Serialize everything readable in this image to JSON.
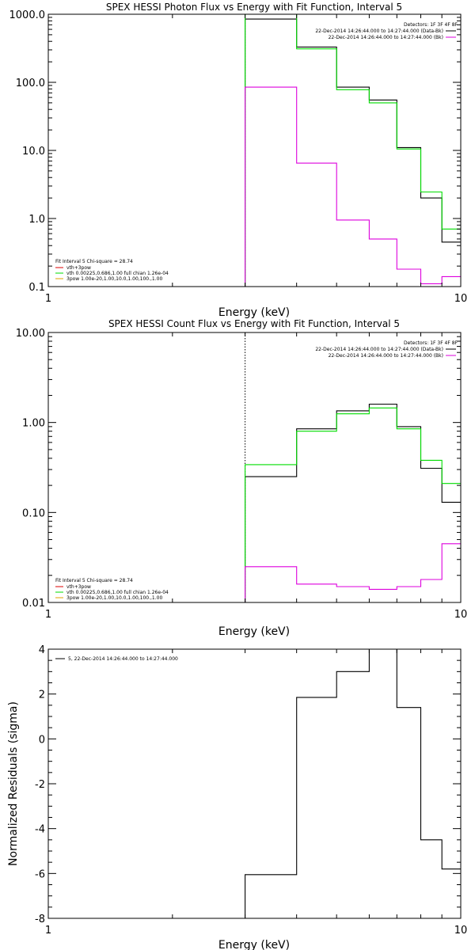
{
  "chart_data": [
    {
      "type": "line",
      "title": "SPEX HESSI Photon Flux vs Energy with Fit Function, Interval 5",
      "xlabel": "Energy (keV)",
      "ylabel": "",
      "xscale": "log",
      "yscale": "log",
      "xlim": [
        1,
        10
      ],
      "ylim": [
        0.1,
        1000
      ],
      "xticks": [
        {
          "v": 1,
          "label": "1"
        },
        {
          "v": 10,
          "label": "10"
        }
      ],
      "yticks": [
        {
          "v": 1000,
          "label": "1000.0"
        },
        {
          "v": 100,
          "label": "100.0"
        },
        {
          "v": 10,
          "label": "10.0"
        },
        {
          "v": 1,
          "label": "1.0"
        },
        {
          "v": 0.1,
          "label": "0.1"
        }
      ],
      "vline": 3.0,
      "vline_color": "#00c000",
      "bin_edges": [
        3.0,
        4.0,
        5.0,
        6.0,
        7.0,
        8.0,
        9.0,
        10.0
      ],
      "series": [
        {
          "color": "#000000",
          "values": [
            850,
            330,
            85,
            55,
            11,
            2.0,
            0.45
          ]
        },
        {
          "color": "#00dd00",
          "values": [
            1000,
            310,
            78,
            50,
            10.5,
            2.45,
            0.7
          ]
        },
        {
          "color": "#dd00dd",
          "values": [
            85,
            6.5,
            0.95,
            0.5,
            0.18,
            0.11,
            0.14
          ]
        }
      ],
      "header_right": {
        "detectors": "Detectors: 1F 3F 4F 8F",
        "lines": [
          {
            "text": "22-Dec-2014 14:26:44.000 to 14:27:44.000 (Data-Bk)",
            "color": "#000000"
          },
          {
            "text": "22-Dec-2014 14:26:44.000 to 14:27:44.000 (Bk)",
            "color": "#dd00dd"
          }
        ]
      },
      "legend_box": {
        "header": "Fit Interval 5   Chi-square = 28.74",
        "lines": [
          {
            "text": "vth+3pow",
            "color": "#dd0000"
          },
          {
            "text": "vth 0.00225,0.686,1.00  full chian 1.26e-04",
            "color": "#00dd00"
          },
          {
            "text": "3pow 1.00e-20,1.00,10.0,1.00,100.,1.00",
            "color": "#e0a000"
          }
        ]
      }
    },
    {
      "type": "line",
      "title": "SPEX HESSI Count Flux vs Energy with Fit Function, Interval 5",
      "xlabel": "Energy (keV)",
      "ylabel": "",
      "xscale": "log",
      "yscale": "log",
      "xlim": [
        1,
        10
      ],
      "ylim": [
        0.01,
        10
      ],
      "xticks": [
        {
          "v": 1,
          "label": "1"
        },
        {
          "v": 10,
          "label": "10"
        }
      ],
      "yticks": [
        {
          "v": 10,
          "label": "10.00"
        },
        {
          "v": 1,
          "label": "1.00"
        },
        {
          "v": 0.1,
          "label": "0.10"
        },
        {
          "v": 0.01,
          "label": "0.01"
        }
      ],
      "vline": 3.0,
      "vline_color": "#000000",
      "bin_edges": [
        3.0,
        4.0,
        5.0,
        6.0,
        7.0,
        8.0,
        9.0,
        10.0
      ],
      "series": [
        {
          "color": "#000000",
          "values": [
            0.25,
            0.85,
            1.35,
            1.6,
            0.9,
            0.31,
            0.13
          ]
        },
        {
          "color": "#00dd00",
          "values": [
            0.34,
            0.8,
            1.25,
            1.45,
            0.85,
            0.38,
            0.21
          ]
        },
        {
          "color": "#dd00dd",
          "values": [
            0.025,
            0.016,
            0.015,
            0.014,
            0.015,
            0.018,
            0.045
          ]
        }
      ],
      "header_right": {
        "detectors": "Detectors: 1F 3F 4F 8F",
        "lines": [
          {
            "text": "22-Dec-2014 14:26:44.000 to 14:27:44.000 (Data-Bk)",
            "color": "#000000"
          },
          {
            "text": "22-Dec-2014 14:26:44.000 to 14:27:44.000 (Bk)",
            "color": "#dd00dd"
          }
        ]
      },
      "legend_box": {
        "header": "Fit Interval 5   Chi-square = 28.74",
        "lines": [
          {
            "text": "vth+3pow",
            "color": "#dd0000"
          },
          {
            "text": "vth 0.00225,0.686,1.00  full chian 1.26e-04",
            "color": "#00dd00"
          },
          {
            "text": "3pow 1.00e-20,1.00,10.0,1.00,100.,1.00",
            "color": "#e0a000"
          }
        ]
      }
    },
    {
      "type": "line",
      "title": "",
      "xlabel": "Energy (keV)",
      "ylabel": "Normalized Residuals (sigma)",
      "xscale": "log",
      "yscale": "linear",
      "xlim": [
        1,
        10
      ],
      "ylim": [
        -8,
        4
      ],
      "xticks": [
        {
          "v": 1,
          "label": "1"
        },
        {
          "v": 10,
          "label": "10"
        }
      ],
      "yticks": [
        {
          "v": 4,
          "label": "4"
        },
        {
          "v": 2,
          "label": "2"
        },
        {
          "v": 0,
          "label": "0"
        },
        {
          "v": -2,
          "label": "-2"
        },
        {
          "v": -4,
          "label": "-4"
        },
        {
          "v": -6,
          "label": "-6"
        },
        {
          "v": -8,
          "label": "-8"
        }
      ],
      "bin_edges": [
        3.0,
        4.0,
        5.0,
        6.0,
        7.0,
        8.0,
        9.0,
        10.0
      ],
      "series": [
        {
          "color": "#000000",
          "values": [
            -6.05,
            1.85,
            3.0,
            4.0,
            1.4,
            -4.5,
            -5.8
          ]
        }
      ],
      "legend_line": {
        "text": "5, 22-Dec-2014 14:26:44.000 to 14:27:44.000",
        "color": "#000000"
      }
    }
  ]
}
